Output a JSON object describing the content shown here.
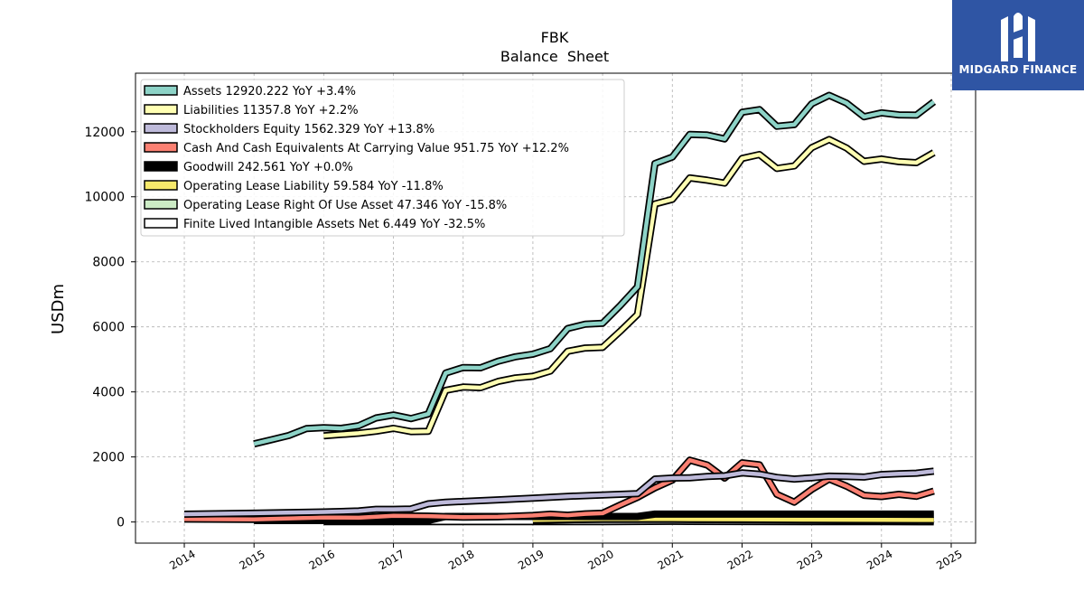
{
  "brand": {
    "name": "MIDGARD FINANCE"
  },
  "chart_data": {
    "type": "line",
    "title": "FBK",
    "subtitle": "Balance  Sheet",
    "ylabel": "USDm",
    "xlabel": "",
    "xlim": [
      2013.3,
      2025.35
    ],
    "ylim": [
      -650,
      13800
    ],
    "grid": true,
    "legend_position": "top-left",
    "x_ticks": [
      2014,
      2015,
      2016,
      2017,
      2018,
      2019,
      2020,
      2021,
      2022,
      2023,
      2024,
      2025
    ],
    "y_ticks": [
      0,
      2000,
      4000,
      6000,
      8000,
      10000,
      12000
    ],
    "series": [
      {
        "name": "Assets  12920.222 YoY +3.4%",
        "color": "#8dd3c7",
        "points": [
          [
            2015.0,
            2400
          ],
          [
            2015.25,
            2530
          ],
          [
            2015.5,
            2660
          ],
          [
            2015.75,
            2870
          ],
          [
            2016.0,
            2900
          ],
          [
            2016.25,
            2880
          ],
          [
            2016.5,
            2960
          ],
          [
            2016.75,
            3200
          ],
          [
            2017.0,
            3290
          ],
          [
            2017.25,
            3180
          ],
          [
            2017.5,
            3320
          ],
          [
            2017.75,
            4580
          ],
          [
            2018.0,
            4750
          ],
          [
            2018.25,
            4740
          ],
          [
            2018.5,
            4940
          ],
          [
            2018.75,
            5080
          ],
          [
            2019.0,
            5160
          ],
          [
            2019.25,
            5330
          ],
          [
            2019.5,
            5950
          ],
          [
            2019.75,
            6080
          ],
          [
            2020.0,
            6110
          ],
          [
            2020.25,
            6650
          ],
          [
            2020.5,
            7230
          ],
          [
            2020.75,
            11020
          ],
          [
            2021.0,
            11220
          ],
          [
            2021.25,
            11920
          ],
          [
            2021.5,
            11900
          ],
          [
            2021.75,
            11780
          ],
          [
            2022.0,
            12600
          ],
          [
            2022.25,
            12680
          ],
          [
            2022.5,
            12170
          ],
          [
            2022.75,
            12220
          ],
          [
            2023.0,
            12860
          ],
          [
            2023.25,
            13120
          ],
          [
            2023.5,
            12880
          ],
          [
            2023.75,
            12460
          ],
          [
            2024.0,
            12580
          ],
          [
            2024.25,
            12520
          ],
          [
            2024.5,
            12510
          ],
          [
            2024.75,
            12920
          ]
        ]
      },
      {
        "name": "Liabilities  11357.8 YoY +2.2%",
        "color": "#ffffb3",
        "points": [
          [
            2016.0,
            2650
          ],
          [
            2016.25,
            2690
          ],
          [
            2016.5,
            2730
          ],
          [
            2016.75,
            2790
          ],
          [
            2017.0,
            2880
          ],
          [
            2017.25,
            2780
          ],
          [
            2017.5,
            2790
          ],
          [
            2017.75,
            4050
          ],
          [
            2018.0,
            4150
          ],
          [
            2018.25,
            4130
          ],
          [
            2018.5,
            4320
          ],
          [
            2018.75,
            4430
          ],
          [
            2019.0,
            4480
          ],
          [
            2019.25,
            4640
          ],
          [
            2019.5,
            5250
          ],
          [
            2019.75,
            5350
          ],
          [
            2020.0,
            5370
          ],
          [
            2020.25,
            5860
          ],
          [
            2020.5,
            6380
          ],
          [
            2020.75,
            9780
          ],
          [
            2021.0,
            9920
          ],
          [
            2021.25,
            10580
          ],
          [
            2021.5,
            10510
          ],
          [
            2021.75,
            10420
          ],
          [
            2022.0,
            11180
          ],
          [
            2022.25,
            11300
          ],
          [
            2022.5,
            10870
          ],
          [
            2022.75,
            10950
          ],
          [
            2023.0,
            11510
          ],
          [
            2023.25,
            11760
          ],
          [
            2023.5,
            11500
          ],
          [
            2023.75,
            11090
          ],
          [
            2024.0,
            11160
          ],
          [
            2024.25,
            11080
          ],
          [
            2024.5,
            11050
          ],
          [
            2024.75,
            11358
          ]
        ]
      },
      {
        "name": "Stockholders Equity  1562.329 YoY +13.8%",
        "color": "#bebada",
        "points": [
          [
            2014.0,
            240
          ],
          [
            2015.0,
            270
          ],
          [
            2016.0,
            310
          ],
          [
            2016.5,
            340
          ],
          [
            2016.75,
            390
          ],
          [
            2017.0,
            390
          ],
          [
            2017.25,
            400
          ],
          [
            2017.5,
            560
          ],
          [
            2017.75,
            610
          ],
          [
            2018.0,
            630
          ],
          [
            2018.5,
            680
          ],
          [
            2019.0,
            730
          ],
          [
            2019.5,
            790
          ],
          [
            2020.0,
            830
          ],
          [
            2020.5,
            870
          ],
          [
            2020.75,
            1320
          ],
          [
            2021.0,
            1350
          ],
          [
            2021.25,
            1360
          ],
          [
            2021.5,
            1400
          ],
          [
            2021.75,
            1420
          ],
          [
            2022.0,
            1510
          ],
          [
            2022.25,
            1470
          ],
          [
            2022.5,
            1370
          ],
          [
            2022.75,
            1320
          ],
          [
            2023.0,
            1360
          ],
          [
            2023.25,
            1410
          ],
          [
            2023.5,
            1400
          ],
          [
            2023.75,
            1380
          ],
          [
            2024.0,
            1460
          ],
          [
            2024.25,
            1480
          ],
          [
            2024.5,
            1500
          ],
          [
            2024.75,
            1562
          ]
        ]
      },
      {
        "name": "Cash And Cash Equivalents At Carrying Value  951.75 YoY +12.2%",
        "color": "#fb8072",
        "points": [
          [
            2014.0,
            90
          ],
          [
            2015.0,
            80
          ],
          [
            2016.0,
            140
          ],
          [
            2016.5,
            130
          ],
          [
            2017.0,
            190
          ],
          [
            2017.5,
            180
          ],
          [
            2018.0,
            150
          ],
          [
            2018.5,
            160
          ],
          [
            2019.0,
            200
          ],
          [
            2019.25,
            240
          ],
          [
            2019.5,
            210
          ],
          [
            2019.75,
            250
          ],
          [
            2020.0,
            270
          ],
          [
            2020.25,
            520
          ],
          [
            2020.5,
            760
          ],
          [
            2020.75,
            1050
          ],
          [
            2021.0,
            1290
          ],
          [
            2021.25,
            1900
          ],
          [
            2021.5,
            1750
          ],
          [
            2021.75,
            1350
          ],
          [
            2022.0,
            1820
          ],
          [
            2022.25,
            1760
          ],
          [
            2022.5,
            850
          ],
          [
            2022.75,
            610
          ],
          [
            2023.0,
            1000
          ],
          [
            2023.25,
            1320
          ],
          [
            2023.5,
            1100
          ],
          [
            2023.75,
            820
          ],
          [
            2024.0,
            780
          ],
          [
            2024.25,
            850
          ],
          [
            2024.5,
            790
          ],
          [
            2024.75,
            952
          ]
        ]
      },
      {
        "name": "Goodwill  242.561 YoY +0.0%",
        "color": "#000000",
        "points": [
          [
            2015.0,
            46
          ],
          [
            2015.75,
            46
          ],
          [
            2016.0,
            46
          ],
          [
            2017.0,
            46
          ],
          [
            2017.5,
            46
          ],
          [
            2017.75,
            170
          ],
          [
            2018.0,
            170
          ],
          [
            2019.0,
            170
          ],
          [
            2020.0,
            170
          ],
          [
            2020.5,
            170
          ],
          [
            2020.75,
            243
          ],
          [
            2024.75,
            243
          ]
        ]
      },
      {
        "name": "Operating Lease Liability  59.584 YoY -11.8%",
        "color": "#f7e96b",
        "points": [
          [
            2019.0,
            60
          ],
          [
            2019.5,
            80
          ],
          [
            2020.0,
            90
          ],
          [
            2021.0,
            90
          ],
          [
            2022.0,
            85
          ],
          [
            2023.0,
            72
          ],
          [
            2024.0,
            66
          ],
          [
            2024.75,
            60
          ]
        ]
      },
      {
        "name": "Operating Lease Right Of Use Asset  47.346 YoY -15.8%",
        "color": "#ccebc5",
        "points": [
          [
            2019.0,
            50
          ],
          [
            2019.5,
            70
          ],
          [
            2020.0,
            78
          ],
          [
            2021.0,
            78
          ],
          [
            2022.0,
            70
          ],
          [
            2023.0,
            60
          ],
          [
            2024.0,
            55
          ],
          [
            2024.75,
            47
          ]
        ]
      },
      {
        "name": "Finite Lived Intangible Assets Net  6.449 YoY -32.5%",
        "color": "#ffffff",
        "points": [
          [
            2016.0,
            10
          ],
          [
            2017.0,
            9
          ],
          [
            2018.0,
            8
          ],
          [
            2019.0,
            8
          ],
          [
            2020.0,
            8
          ],
          [
            2021.0,
            20
          ],
          [
            2022.0,
            14
          ],
          [
            2023.0,
            10
          ],
          [
            2024.0,
            8
          ],
          [
            2024.75,
            6
          ]
        ]
      }
    ]
  }
}
